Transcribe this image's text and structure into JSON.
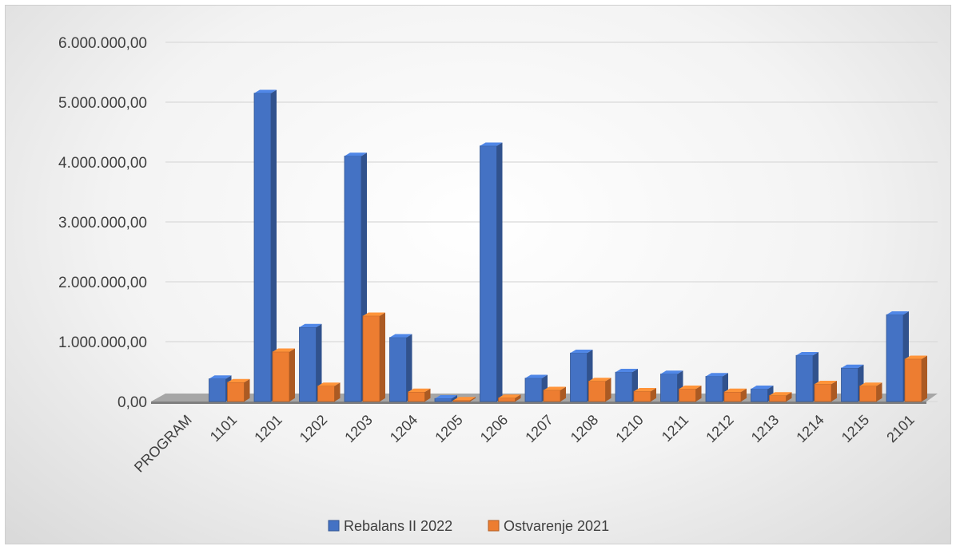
{
  "chart_data": {
    "type": "bar",
    "categories": [
      "PROGRAM",
      "1101",
      "1201",
      "1202",
      "1203",
      "1204",
      "1205",
      "1206",
      "1207",
      "1208",
      "1210",
      "1211",
      "1212",
      "1213",
      "1214",
      "1215",
      "2101"
    ],
    "series": [
      {
        "name": "Rebalans II 2022",
        "color": "#4472c4",
        "values": [
          null,
          380000,
          5150000,
          1240000,
          4100000,
          1070000,
          50000,
          4270000,
          390000,
          810000,
          490000,
          460000,
          420000,
          210000,
          770000,
          560000,
          1450000
        ]
      },
      {
        "name": "Ostvarenje 2021",
        "color": "#ed7d31",
        "values": [
          null,
          320000,
          830000,
          260000,
          1430000,
          160000,
          20000,
          60000,
          190000,
          340000,
          170000,
          210000,
          160000,
          100000,
          290000,
          260000,
          710000
        ]
      }
    ],
    "yticks": [
      "6.000.000,00",
      "5.000.000,00",
      "4.000.000,00",
      "3.000.000,00",
      "2.000.000,00",
      "1.000.000,00",
      "0,00"
    ],
    "ylim": [
      0,
      6000000
    ],
    "legend_position": "bottom",
    "grid": true
  }
}
